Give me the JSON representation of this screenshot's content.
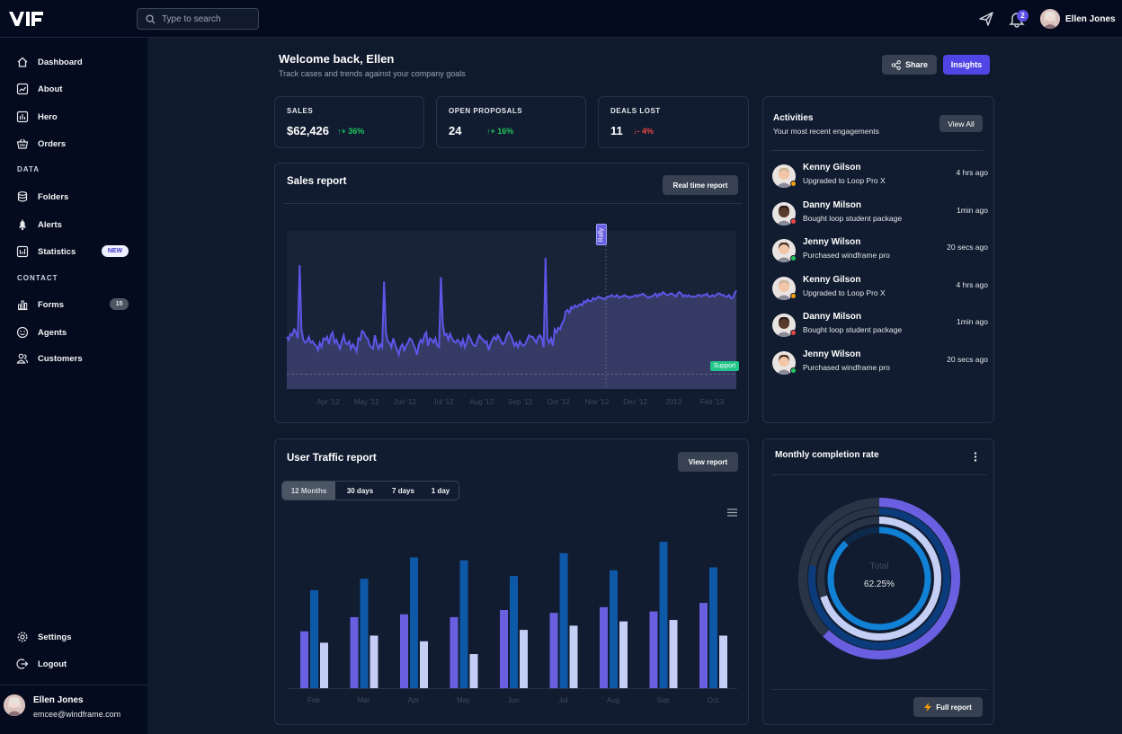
{
  "header": {
    "search_placeholder": "Type to search",
    "notification_count": "2",
    "user_name": "Ellen Jones"
  },
  "sidebar": {
    "items": [
      {
        "label": "Dashboard",
        "icon": "home-icon"
      },
      {
        "label": "About",
        "icon": "chart-line-icon"
      },
      {
        "label": "Hero",
        "icon": "chart-bars-icon"
      },
      {
        "label": "Orders",
        "icon": "basket-icon"
      }
    ],
    "section_data": "DATA",
    "data_items": [
      {
        "label": "Folders",
        "icon": "database-icon"
      },
      {
        "label": "Alerts",
        "icon": "bell-icon"
      },
      {
        "label": "Statistics",
        "icon": "statistics-icon",
        "badge": "NEW"
      }
    ],
    "section_contact": "CONTACT",
    "contact_items": [
      {
        "label": "Forms",
        "icon": "bar-chart-icon",
        "badge": "15"
      },
      {
        "label": "Agents",
        "icon": "smiley-icon"
      },
      {
        "label": "Customers",
        "icon": "users-icon"
      }
    ],
    "settings_label": "Settings",
    "logout_label": "Logout",
    "user": {
      "name": "Ellen Jones",
      "email": "emcee@windframe.com"
    }
  },
  "main": {
    "greeting": "Welcome back, Ellen",
    "subtitle": "Track cases and trends against your company goals",
    "share_label": "Share",
    "insights_label": "Insights",
    "stats": [
      {
        "label": "SALES",
        "value": "$62,426",
        "change": "↑+ 36%",
        "trend": "up"
      },
      {
        "label": "OPEN PROPOSALS",
        "value": "24",
        "change": "↑+ 16%",
        "trend": "up"
      },
      {
        "label": "DEALS LOST",
        "value": "11",
        "change": "↓- 4%",
        "trend": "down"
      }
    ]
  },
  "sales_report": {
    "title": "Sales report",
    "button": "Real time report",
    "annotation_rally": "Rally",
    "annotation_support": "Support"
  },
  "traffic_report": {
    "title": "User Traffic report",
    "button": "View report",
    "tabs": [
      "12 Months",
      "30 days",
      "7 days",
      "1 day"
    ],
    "active_tab": "12 Months"
  },
  "activities": {
    "title": "Activities",
    "subtitle": "Your most recent engagements",
    "view_all": "View All",
    "items": [
      {
        "name": "Kenny Gilson",
        "desc": "Upgraded to Loop Pro X",
        "time": "4 hrs ago",
        "status": "#f59e0b"
      },
      {
        "name": "Danny Milson",
        "desc": "Bought loop student package",
        "time": "1min ago",
        "status": "#ef4444"
      },
      {
        "name": "Jenny Wilson",
        "desc": "Purchased windframe pro",
        "time": "20 secs ago",
        "status": "#22c55e"
      },
      {
        "name": "Kenny Gilson",
        "desc": "Upgraded to Loop Pro X",
        "time": "4 hrs ago",
        "status": "#f59e0b"
      },
      {
        "name": "Danny Milson",
        "desc": "Bought loop student package",
        "time": "1min ago",
        "status": "#ef4444"
      },
      {
        "name": "Jenny Wilson",
        "desc": "Purchased windframe pro",
        "time": "20 secs ago",
        "status": "#22c55e"
      }
    ]
  },
  "completion": {
    "title": "Monthly completion rate",
    "center_label": "Total",
    "center_value": "62.25%",
    "button": "Full report"
  },
  "chart_data": [
    {
      "type": "area",
      "x_ticks": [
        "Apr '12",
        "May '12",
        "Jun '12",
        "Jul '12",
        "Aug '12",
        "Sep '12",
        "Oct '12",
        "Nov '12",
        "Dec '12",
        "2013",
        "Feb '13"
      ],
      "values": [
        35,
        33,
        37,
        36,
        40,
        38,
        34,
        83,
        40,
        33,
        31,
        32,
        35,
        31,
        32,
        30,
        29,
        26,
        31,
        28,
        34,
        33,
        35,
        30,
        36,
        38,
        31,
        33,
        30,
        27,
        32,
        36,
        31,
        30,
        32,
        27,
        30,
        28,
        25,
        34,
        33,
        39,
        38,
        35,
        34,
        30,
        28,
        27,
        36,
        31,
        27,
        30,
        28,
        72,
        38,
        32,
        31,
        28,
        34,
        30,
        27,
        23,
        28,
        30,
        26,
        29,
        31,
        34,
        33,
        30,
        27,
        23,
        30,
        33,
        31,
        36,
        38,
        29,
        34,
        33,
        31,
        34,
        29,
        28,
        75,
        44,
        36,
        37,
        33,
        37,
        34,
        32,
        31,
        33,
        32,
        29,
        33,
        28,
        31,
        36,
        34,
        31,
        29,
        29,
        33,
        36,
        34,
        33,
        31,
        32,
        26,
        30,
        33,
        35,
        33,
        36,
        34,
        31,
        30,
        32,
        36,
        38,
        36,
        33,
        29,
        31,
        28,
        32,
        30,
        29,
        30,
        33,
        36,
        35,
        35,
        33,
        31,
        35,
        36,
        34,
        28,
        88,
        34,
        31,
        34,
        29,
        40,
        38,
        41,
        40,
        44,
        46,
        52,
        53,
        51,
        55,
        54,
        56,
        55,
        56,
        57,
        56,
        59,
        58,
        60,
        59,
        59,
        61,
        60,
        61,
        62,
        61,
        61,
        60,
        61,
        62,
        62,
        63,
        62,
        62,
        63,
        61,
        62,
        62,
        63,
        62,
        62,
        61,
        62,
        62,
        63,
        62,
        63,
        63,
        64,
        63,
        62,
        61,
        62,
        62,
        63,
        64,
        62,
        64,
        63,
        65,
        64,
        63,
        63,
        64,
        64,
        63,
        62,
        64,
        65,
        64,
        62,
        63,
        62,
        63,
        62,
        62,
        62,
        62,
        63,
        63,
        62,
        63,
        63,
        64,
        62,
        62,
        63,
        62,
        63,
        64,
        64,
        63,
        63,
        62,
        62,
        63,
        61,
        61,
        64,
        66
      ],
      "marker_x_fraction": 0.71,
      "baseline": 10
    },
    {
      "type": "bar",
      "categories": [
        "Feb",
        "Mar",
        "Apr",
        "May",
        "Jun",
        "Jul",
        "Aug",
        "Sep",
        "Oct"
      ],
      "series": [
        {
          "color": "#6a5fe0",
          "values": [
            40,
            50,
            52,
            50,
            55,
            53,
            57,
            54,
            60
          ]
        },
        {
          "color": "#0e58a8",
          "values": [
            69,
            77,
            92,
            90,
            79,
            95,
            83,
            103,
            85
          ]
        },
        {
          "color": "#c5cef4",
          "values": [
            32,
            37,
            33,
            24,
            41,
            44,
            47,
            48,
            37
          ]
        }
      ],
      "ylim": [
        0,
        110
      ]
    },
    {
      "type": "pie",
      "rings": [
        {
          "value": 62.25,
          "color": "#6a5fe0",
          "track": "#2a3447"
        },
        {
          "value": 78,
          "color": "#0b3b7a",
          "track": "#2a3447"
        },
        {
          "value": 70,
          "color": "#c5cef4",
          "track": "#2a3447"
        },
        {
          "value": 88,
          "color": "#1181d6",
          "track": "#0e2a4a"
        }
      ]
    }
  ]
}
